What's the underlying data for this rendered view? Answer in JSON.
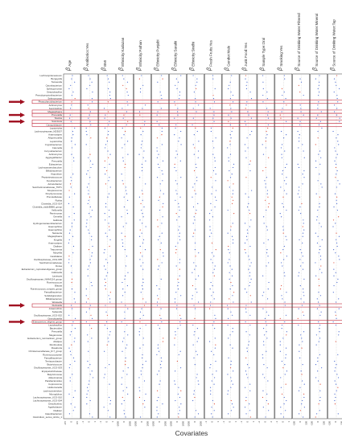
{
  "chart_data": {
    "type": "scatter",
    "xlabel": "Covariates",
    "panels": [
      {
        "covariate": "Age",
        "ticks": [
          "-0.5",
          "0",
          "0.5"
        ],
        "xlim": [
          -0.7,
          0.7
        ]
      },
      {
        "covariate": "Antibiotics:Yes",
        "ticks": [
          "-1",
          "0",
          "1"
        ],
        "xlim": [
          -1.5,
          1.5
        ]
      },
      {
        "covariate": "BMI",
        "ticks": [
          "-1",
          "0",
          "1"
        ],
        "xlim": [
          -1.5,
          1.5
        ]
      },
      {
        "covariate": "Ethnicity:Kadazan",
        "ticks": [
          "-1000",
          "0",
          "1000"
        ],
        "xlim": [
          -1500,
          1500
        ]
      },
      {
        "covariate": "Ethnicity:Pathan",
        "ticks": [
          "-1000",
          "0",
          "1000"
        ],
        "xlim": [
          -1500,
          1500
        ]
      },
      {
        "covariate": "Ethnicity:Punjabi",
        "ticks": [
          "-1000",
          "0",
          "1000"
        ],
        "xlim": [
          -1500,
          1500
        ]
      },
      {
        "covariate": "Ethnicity:Saraiki",
        "ticks": [
          "-1000",
          "0",
          "1000"
        ],
        "xlim": [
          -1500,
          1500
        ]
      },
      {
        "covariate": "Ethnicity:Sindhi",
        "ticks": [
          "-1000",
          "0",
          "1000"
        ],
        "xlim": [
          -1500,
          1500
        ]
      },
      {
        "covariate": "Fresh Fruits:Yes",
        "ticks": [
          "-1",
          "0",
          "1"
        ],
        "xlim": [
          -1.5,
          1.5
        ]
      },
      {
        "covariate": "Gender:Male",
        "ticks": [
          "-1",
          "0",
          "1"
        ],
        "xlim": [
          -1.5,
          1.5
        ]
      },
      {
        "covariate": "Junk Food:Yes",
        "ticks": [
          "-1",
          "0",
          "1"
        ],
        "xlim": [
          -1.5,
          1.5
        ]
      },
      {
        "covariate": "Sample Type:Oral",
        "ticks": [
          "-2",
          "0",
          "2"
        ],
        "xlim": [
          -3,
          3
        ]
      },
      {
        "covariate": "Smoking:Yes",
        "ticks": [
          "-1",
          "0",
          "1"
        ],
        "xlim": [
          -1.5,
          1.5
        ]
      },
      {
        "covariate": "Source of Drinking Water:Filtered",
        "ticks": [
          "-100",
          "0",
          "100"
        ],
        "xlim": [
          -150,
          150
        ]
      },
      {
        "covariate": "Source of Drinking Water:Mineral",
        "ticks": [
          "-100",
          "0",
          "100"
        ],
        "xlim": [
          -150,
          150
        ]
      },
      {
        "covariate": "Source of Drinking Water:Tap",
        "ticks": [
          "-100",
          "0",
          "100"
        ],
        "xlim": [
          -150,
          150
        ]
      }
    ],
    "taxa": [
      "Lachnospiraceaceum",
      "Bergeyella",
      "Tannerella",
      "Catonbacterium",
      "Sphingomonas",
      "Streptobacillus",
      "Pseudopropionibacterium",
      "Selenomonas",
      "Phascolarctobacterium",
      "Actinomyces",
      "Succinivibrio",
      "Megasphaera",
      "Prevotella",
      "Slackia",
      "Scardovia",
      "Campylobacter",
      "Leptotrichia",
      "Lachnospiraceae_ND3007",
      "Anaerostipes",
      "Alloprevotella",
      "Leptotrichia",
      "Cryptobacterium",
      "Catonella",
      "Corynebacterium",
      "Actinomyces",
      "Aggregatibacter",
      "Prevotella",
      "Eubacterium",
      "Lachnoanaerobaculum",
      "Bifidobacterium",
      "Atopobium",
      "Peptostreptococcus",
      "Fusobacterium",
      "Acinetobacter",
      "Saccharimonadaceae_TM7x",
      "Streptococcus",
      "Porphyromonas",
      "Prevotellaceae",
      "Rothia",
      "Clostridia_UCG-014",
      "Clostridia_vadinBB60_group",
      "Veillonella",
      "Parvimonas",
      "Gemella",
      "Gallicola",
      "Hydrogenoanaerobacterium",
      "Haemophilus",
      "Haemophilus",
      "Neisseria",
      "Megasphaera",
      "Kingella",
      "Anaerostipes",
      "Dialister",
      "Treponema",
      "Moryella",
      "Candidatus",
      "Oscillospiraceae_UCG-005",
      "Saccharimonadaceae",
      "Dorea",
      "Eubacterium_coprostanoligenes_group",
      "Collinsella",
      "Lautropia",
      "Oscillospiraceae_NK4A214_group",
      "Ruminococcus",
      "Blautia",
      "Ruminococcus_torques_group",
      "Faecalibacterium",
      "Subdoligranulum",
      "Bifidobacterium",
      "Weissella",
      "Klebsiella",
      "Anaerovibrio",
      "Sutterella",
      "Oscillospiraceae_UCG-002",
      "Granulicatella",
      "Eubacterium_eligens_group",
      "Lactobacillus",
      "Bacteroides",
      "Prevotella",
      "Megamonas",
      "Eubacterium_ruminantium_group",
      "Alistipes",
      "Romboutsia",
      "Roseburia",
      "Christensenellaceae_R-7_group",
      "Ruminococcaceae",
      "Faecalibacterium",
      "Terrisporobacter",
      "Butyricicoccus",
      "Oscillospiraceae_UCG-003",
      "Erysipelotrichaceae",
      "Butyricimonas",
      "Akkermansia",
      "Parabacteroides",
      "Coprococcus",
      "Holdemanella",
      "Lachnoclostridium",
      "Monoglobus",
      "Lachnospiraceae_UCG-010",
      "Lachnospiraceae_UCG-004",
      "Desulfovibrio",
      "Agathobacter",
      "Dialister",
      "Catenibacterium",
      "Clostridium_sensu_stricto_1"
    ],
    "highlighted_rows": [
      8,
      11,
      12,
      14,
      15,
      70,
      75
    ],
    "arrow_rows": [
      8,
      12,
      14,
      70,
      75
    ],
    "series": [
      {
        "name": "coefficient",
        "color": "#4a6ad0"
      },
      {
        "name": "significant",
        "color": "#e0503a"
      }
    ],
    "colors": {
      "box": "#c0283a",
      "arrow": "#a01020",
      "blue": "#4a6ad0",
      "red": "#e0503a",
      "frame": "#333333"
    }
  }
}
